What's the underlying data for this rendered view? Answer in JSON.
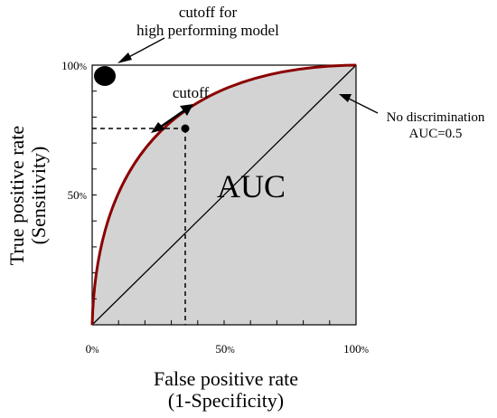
{
  "diagram": {
    "x_axis": {
      "title_line1": "False positive rate",
      "title_line2": "(1-Specificity)",
      "ticks": [
        {
          "value": 0,
          "num": "0",
          "unit": "%"
        },
        {
          "value": 50,
          "num": "50",
          "unit": "%"
        },
        {
          "value": 100,
          "num": "100",
          "unit": "%"
        }
      ]
    },
    "y_axis": {
      "title_line1": "True positive rate",
      "title_line2": "(Sensitivity)",
      "ticks": [
        {
          "value": 50,
          "num": "50",
          "unit": "%"
        },
        {
          "value": 100,
          "num": "100",
          "unit": "%"
        }
      ]
    },
    "area_label": "AUC",
    "annotations": {
      "ideal_cutoff_line1": "cutoff for",
      "ideal_cutoff_line2": "high performing model",
      "cutoff": "cutoff",
      "diagonal_line1": "No discrimination",
      "diagonal_line2": "AUC=0.5"
    },
    "cutoff_point": {
      "fpr": 35,
      "tpr": 76
    },
    "ideal_point": {
      "fpr": 5,
      "tpr": 95
    },
    "colors": {
      "curve": "#8b0000",
      "area_fill": "#d3d3d3",
      "axes": "#000000"
    }
  }
}
